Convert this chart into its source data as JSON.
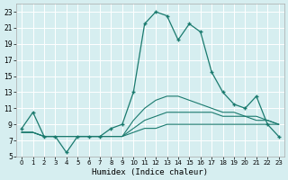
{
  "xlabel": "Humidex (Indice chaleur)",
  "background_color": "#d6eef0",
  "grid_color": "#b0d8dc",
  "line_color": "#1a7a6e",
  "xlim": [
    -0.5,
    23.5
  ],
  "ylim": [
    5,
    24
  ],
  "xticks": [
    0,
    1,
    2,
    3,
    4,
    5,
    6,
    7,
    8,
    9,
    10,
    11,
    12,
    13,
    14,
    15,
    16,
    17,
    18,
    19,
    20,
    21,
    22,
    23
  ],
  "yticks": [
    5,
    7,
    9,
    11,
    13,
    15,
    17,
    19,
    21,
    23
  ],
  "main_curve": [
    8.5,
    10.5,
    7.5,
    7.5,
    5.5,
    7.5,
    7.5,
    7.5,
    8.5,
    9.0,
    13.0,
    21.5,
    23.0,
    22.5,
    19.5,
    21.5,
    20.5,
    15.5,
    13.0,
    11.5,
    11.0,
    12.5,
    9.0,
    7.5
  ],
  "line1": [
    8.0,
    8.0,
    7.5,
    7.5,
    7.5,
    7.5,
    7.5,
    7.5,
    7.5,
    7.5,
    8.0,
    8.5,
    8.5,
    9.0,
    9.0,
    9.0,
    9.0,
    9.0,
    9.0,
    9.0,
    9.0,
    9.0,
    9.0,
    9.0
  ],
  "line2": [
    8.0,
    8.0,
    7.5,
    7.5,
    7.5,
    7.5,
    7.5,
    7.5,
    7.5,
    7.5,
    8.5,
    9.5,
    10.0,
    10.5,
    10.5,
    10.5,
    10.5,
    10.5,
    10.0,
    10.0,
    10.0,
    9.5,
    9.5,
    9.0
  ],
  "line3": [
    8.0,
    8.0,
    7.5,
    7.5,
    7.5,
    7.5,
    7.5,
    7.5,
    7.5,
    7.5,
    9.5,
    11.0,
    12.0,
    12.5,
    12.5,
    12.0,
    11.5,
    11.0,
    10.5,
    10.5,
    10.0,
    10.0,
    9.5,
    9.0
  ]
}
